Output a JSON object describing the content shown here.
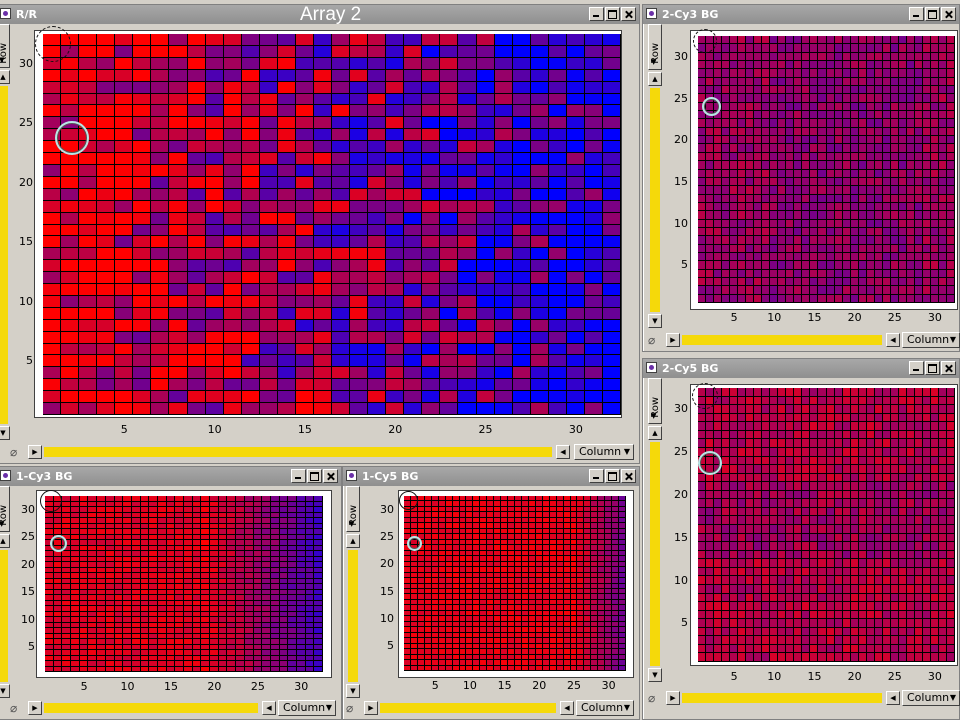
{
  "overlay_title": "Array 2",
  "windows": {
    "rr": {
      "title": "R/R"
    },
    "cy3_2": {
      "title": "2-Cy3 BG"
    },
    "cy5_2": {
      "title": "2-Cy5 BG"
    },
    "cy3_1": {
      "title": "1-Cy3 BG"
    },
    "cy5_1": {
      "title": "1-Cy5 BG"
    }
  },
  "labels": {
    "row": "Row",
    "column": "Column"
  },
  "icons": [
    "minimize-icon",
    "maximize-icon",
    "close-icon",
    "scroll-up-icon",
    "scroll-down-icon",
    "scroll-left-icon",
    "scroll-right-icon",
    "paperclip-icon",
    "dropdown-arrow-icon"
  ],
  "colors": {
    "high": "#ff0000",
    "low": "#0000ff",
    "scrollbar": "#f5d90a",
    "titlebar": "#999999"
  },
  "heatmaps": {
    "columns": 32,
    "rows": 32,
    "rr": {
      "x_ticks": [
        "5",
        "10",
        "15",
        "20",
        "25",
        "30"
      ],
      "y_ticks": [
        "5",
        "10",
        "15",
        "20",
        "25",
        "30"
      ]
    },
    "cy3_2": {
      "x_ticks": [
        "5",
        "10",
        "15",
        "20",
        "25",
        "30"
      ],
      "y_ticks": [
        "5",
        "10",
        "15",
        "20",
        "25",
        "30"
      ]
    },
    "cy5_2": {
      "x_ticks": [
        "5",
        "10",
        "15",
        "20",
        "25",
        "30"
      ],
      "y_ticks": [
        "5",
        "10",
        "15",
        "20",
        "25",
        "30"
      ]
    },
    "cy3_1": {
      "x_ticks": [
        "5",
        "10",
        "15",
        "20",
        "25",
        "30"
      ],
      "y_ticks": [
        "5",
        "10",
        "15",
        "20",
        "25",
        "30"
      ]
    },
    "cy5_1": {
      "x_ticks": [
        "5",
        "10",
        "15",
        "20",
        "25",
        "30"
      ],
      "y_ticks": [
        "5",
        "10",
        "15",
        "20",
        "25",
        "30"
      ]
    }
  }
}
